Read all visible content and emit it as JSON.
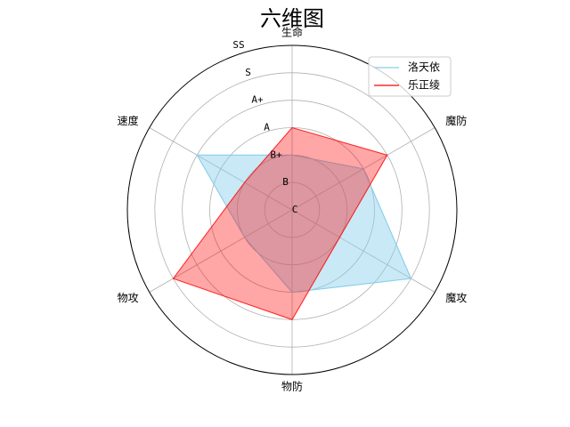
{
  "chart_data": {
    "type": "radar",
    "title": "六维图",
    "axes": [
      "生命",
      "魔防",
      "魔攻",
      "物防",
      "物攻",
      "速度"
    ],
    "rings": [
      "C",
      "B",
      "B+",
      "A",
      "A+",
      "S",
      "SS"
    ],
    "rlim": [
      0,
      6
    ],
    "grid": true,
    "legend_position": "top-right",
    "series": [
      {
        "name": "洛天依",
        "color": "#87CEEB",
        "values": [
          2,
          3,
          5,
          3,
          2,
          4
        ]
      },
      {
        "name": "乐正绫",
        "color": "#FF0000",
        "values": [
          3,
          4,
          2,
          4,
          5,
          2
        ]
      }
    ]
  }
}
